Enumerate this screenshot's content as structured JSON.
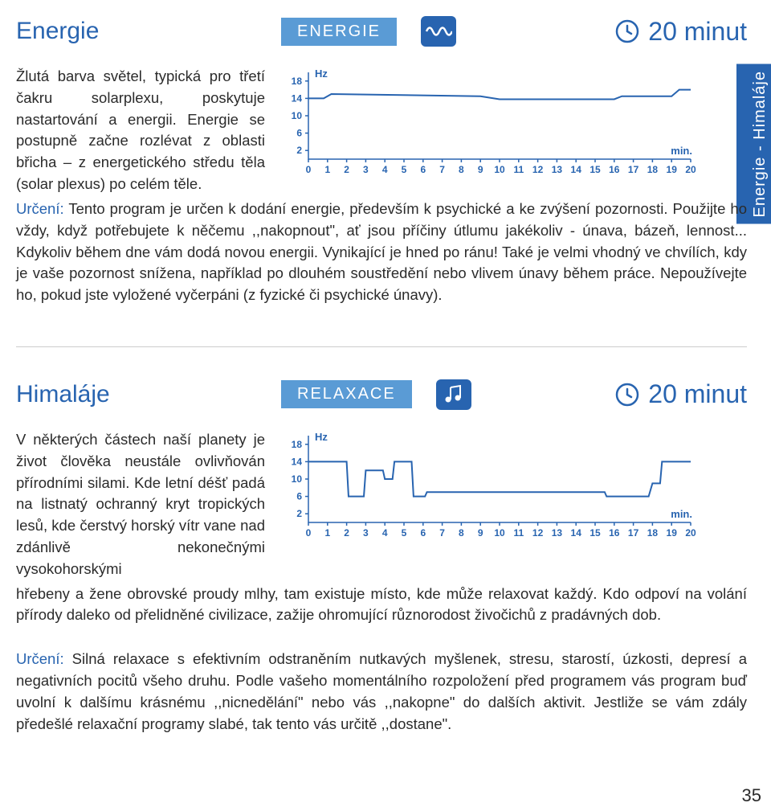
{
  "side_tab": "Energie - Himaláje",
  "page_number": "35",
  "section1": {
    "title": "Energie",
    "badge": "ENERGIE",
    "icon_type": "wave",
    "duration": "20 minut",
    "intro": "Žlutá barva světel, typická pro třetí čakru solarplexu, poskytuje nastartování a energii. Energie se postupně začne rozlévat z oblasti břicha – z energetického středu těla (solar plexus) po celém těle.",
    "urceni_label": "Určení:",
    "flow": " Tento program je určen k dodání energie, především k psychické a ke zvýšení pozornosti. Použijte ho vždy, když potřebujete k něčemu ,,nakopnout\", ať jsou příčiny útlumu jakékoliv - únava, bázeň, lennost... Kdykoliv během dne vám dodá novou energii. Vynikající je hned po ránu! Také je velmi vhodný ve chvílích, kdy je vaše pozornost snížena, například po dlouhém soustředění nebo vlivem únavy během práce. Nepoužívejte ho, pokud jste vyložené vyčerpáni (z fyzické či psychické únavy).",
    "chart": {
      "y_label": "Hz",
      "x_label": "min.",
      "y_ticks": [
        2,
        6,
        10,
        14,
        18
      ],
      "x_ticks": [
        0,
        1,
        2,
        3,
        4,
        5,
        6,
        7,
        8,
        9,
        10,
        11,
        12,
        13,
        14,
        15,
        16,
        17,
        18,
        19,
        20
      ],
      "y_min": 0,
      "y_max": 20,
      "x_min": 0,
      "x_max": 20,
      "line_color": "#2864b0",
      "points": [
        [
          0,
          14
        ],
        [
          0.8,
          14
        ],
        [
          1.2,
          15
        ],
        [
          9,
          14.5
        ],
        [
          10,
          13.8
        ],
        [
          16,
          13.8
        ],
        [
          16.4,
          14.5
        ],
        [
          19,
          14.5
        ],
        [
          19.4,
          16
        ],
        [
          20,
          16
        ]
      ]
    }
  },
  "section2": {
    "title": "Himaláje",
    "badge": "RELAXACE",
    "icon_type": "music",
    "duration": "20 minut",
    "intro": "V některých částech naší planety je život člověka neustále ovlivňován přírodními silami. Kde letní déšť padá na listnatý ochranný kryt tropických lesů, kde čerstvý horský vítr vane nad zdánlivě nekonečnými vysokohorskými",
    "flow": "hřebeny a žene obrovské proudy mlhy, tam existuje místo, kde může relaxovat každý. Kdo odpoví na volání přírody daleko od přelidněné civilizace, zažije ohromující různorodost živočichů z pradávných dob.",
    "urceni_label": "Určení:",
    "urceni_text": " Silná relaxace s efektivním odstraněním nutkavých myšlenek, stresu, starostí, úzkosti, depresí a negativních pocitů všeho druhu. Podle vašeho momentálního rozpoložení před programem vás program buď uvolní k dalšímu krásnému ,,nicnedělání\" nebo vás ,,nakopne\" do dalších aktivit. Jestliže se vám zdály předešlé relaxační programy slabé, tak tento vás určitě ,,dostane\".",
    "chart": {
      "y_label": "Hz",
      "x_label": "min.",
      "y_ticks": [
        2,
        6,
        10,
        14,
        18
      ],
      "x_ticks": [
        0,
        1,
        2,
        3,
        4,
        5,
        6,
        7,
        8,
        9,
        10,
        11,
        12,
        13,
        14,
        15,
        16,
        17,
        18,
        19,
        20
      ],
      "y_min": 0,
      "y_max": 20,
      "x_min": 0,
      "x_max": 20,
      "line_color": "#2864b0",
      "points": [
        [
          0,
          14
        ],
        [
          2,
          14
        ],
        [
          2.1,
          6
        ],
        [
          2.9,
          6
        ],
        [
          3,
          12
        ],
        [
          3.9,
          12
        ],
        [
          4,
          10
        ],
        [
          4.4,
          10
        ],
        [
          4.5,
          14
        ],
        [
          5.4,
          14
        ],
        [
          5.5,
          6
        ],
        [
          6.1,
          6
        ],
        [
          6.2,
          7
        ],
        [
          15.5,
          7
        ],
        [
          15.6,
          6
        ],
        [
          17.8,
          6
        ],
        [
          18,
          9
        ],
        [
          18.4,
          9
        ],
        [
          18.5,
          14
        ],
        [
          20,
          14
        ]
      ]
    }
  }
}
